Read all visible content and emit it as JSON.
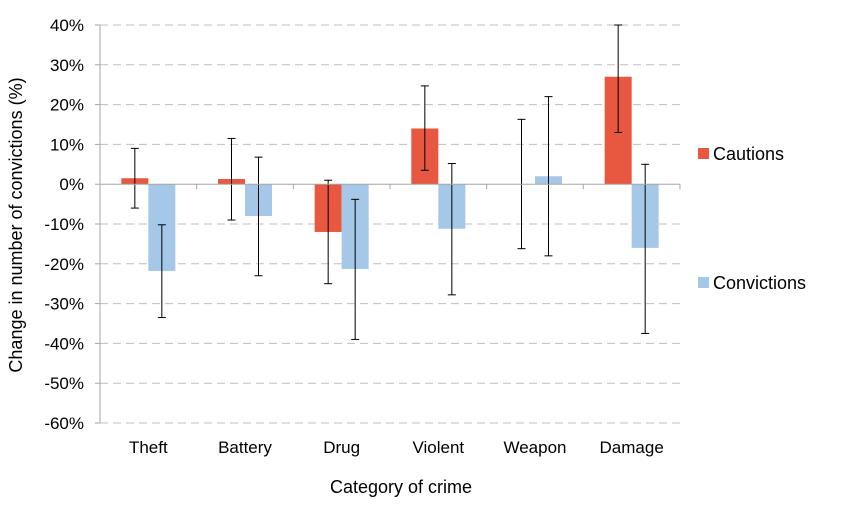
{
  "chart_data": {
    "type": "bar",
    "title": "",
    "xlabel": "Category of crime",
    "ylabel": "Change in number of convictions (%)",
    "ylim": [
      -60,
      40
    ],
    "yticks": [
      40,
      30,
      20,
      10,
      0,
      -10,
      -20,
      -30,
      -40,
      -50,
      -60
    ],
    "ytick_labels": [
      "40%",
      "30%",
      "20%",
      "10%",
      "0%",
      "-10%",
      "-20%",
      "-30%",
      "-40%",
      "-50%",
      "-60%"
    ],
    "grid": true,
    "legend_position": "right",
    "categories": [
      "Theft",
      "Battery",
      "Drug",
      "Violent",
      "Weapon",
      "Damage"
    ],
    "series": [
      {
        "name": "Cautions",
        "color": "#e8573f",
        "values": [
          1.5,
          1.3,
          -12,
          14,
          0,
          27
        ],
        "error_low": [
          -6,
          -9,
          -25,
          3.5,
          -16.2,
          13
        ],
        "error_high": [
          9,
          11.5,
          1,
          24.7,
          16.3,
          40
        ]
      },
      {
        "name": "Convictions",
        "color": "#a6c8e8",
        "values": [
          -21.8,
          -8,
          -21.3,
          -11.2,
          2,
          -16
        ],
        "error_low": [
          -33.5,
          -23,
          -39,
          -27.8,
          -18,
          -37.5
        ],
        "error_high": [
          -10.2,
          6.8,
          -3.8,
          5.2,
          22,
          5
        ]
      }
    ]
  }
}
